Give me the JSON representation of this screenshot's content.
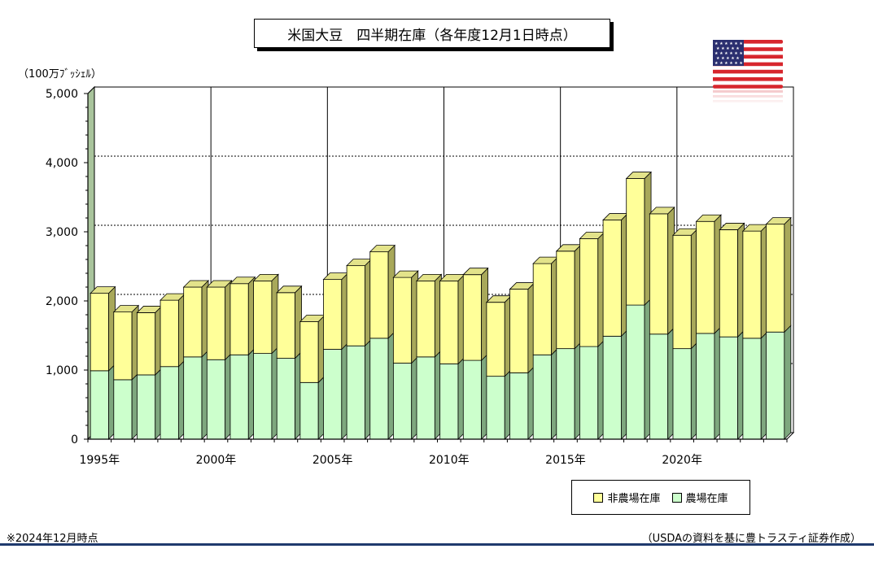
{
  "title": "米国大豆　四半期在庫（各年度12月1日時点）",
  "unit_label": "（100万ﾌﾞｯｼｪﾙ）",
  "footnote": "※2024年12月時点",
  "source": "（USDAの資料を基に豊トラスティ証券作成）",
  "legend": {
    "non_farm": "非農場在庫",
    "farm": "農場在庫"
  },
  "colors": {
    "non_farm": "#ffff99",
    "farm": "#ccffcc",
    "non_farm_side": "#a8a85a",
    "farm_side": "#7ea77e",
    "footer_rule": "#1f3a6d"
  },
  "icons": {
    "flag": "us-flag-icon"
  },
  "chart_data": {
    "type": "bar",
    "stacked": true,
    "categories": [
      "1995",
      "1996",
      "1997",
      "1998",
      "1999",
      "2000",
      "2001",
      "2002",
      "2003",
      "2004",
      "2005",
      "2006",
      "2007",
      "2008",
      "2009",
      "2010",
      "2011",
      "2012",
      "2013",
      "2014",
      "2015",
      "2016",
      "2017",
      "2018",
      "2019",
      "2020",
      "2021",
      "2022",
      "2023",
      "2024"
    ],
    "x_tick_labels": [
      {
        "category": "1995",
        "label": "1995年"
      },
      {
        "category": "2000",
        "label": "2000年"
      },
      {
        "category": "2005",
        "label": "2005年"
      },
      {
        "category": "2010",
        "label": "2010年"
      },
      {
        "category": "2015",
        "label": "2015年"
      },
      {
        "category": "2020",
        "label": "2020年"
      }
    ],
    "series": [
      {
        "name": "農場在庫",
        "values": [
          990,
          860,
          930,
          1050,
          1190,
          1150,
          1220,
          1240,
          1170,
          820,
          1300,
          1350,
          1460,
          1100,
          1190,
          1090,
          1140,
          910,
          960,
          1220,
          1310,
          1340,
          1490,
          1940,
          1520,
          1310,
          1530,
          1480,
          1460,
          1550
        ]
      },
      {
        "name": "非農場在庫",
        "values": [
          1120,
          980,
          900,
          960,
          1010,
          1050,
          1030,
          1050,
          950,
          880,
          1010,
          1160,
          1250,
          1240,
          1100,
          1200,
          1240,
          1070,
          1210,
          1320,
          1410,
          1560,
          1680,
          1830,
          1740,
          1640,
          1620,
          1550,
          1550,
          1560
        ]
      }
    ],
    "y_tick_labels": [
      "0",
      "1,000",
      "2,000",
      "3,000",
      "4,000",
      "5,000"
    ],
    "ylim": [
      0,
      5000
    ],
    "y_major_step": 1000,
    "gridlines": "dotted horizontal at 1,000 steps, vertical at each 5 years"
  }
}
